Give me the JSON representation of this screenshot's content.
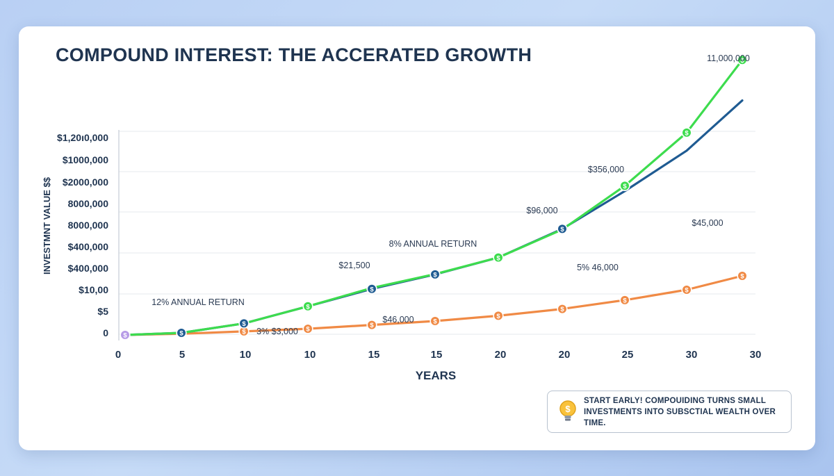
{
  "title": "COMPOUND INTEREST: THE ACCERATED GROWTH",
  "tip": {
    "line1": "START EARLY! COMPOUIDING TURNS SMALL",
    "line2": "INVESTMENTS INTO SUBSCTIAL WEALTH OVER TIME.",
    "icon": "lightbulb-dollar-icon"
  },
  "colors": {
    "green": "#3ddc4e",
    "blue": "#1f5b92",
    "orange": "#f08a45",
    "start": "#b79be6",
    "text": "#1f3450",
    "grid": "#e6e9ee"
  },
  "chart_data": {
    "type": "line",
    "xlabel": "YEARS",
    "ylabel": "INVESTMNT VALUE $$",
    "x_tick_labels": [
      "0",
      "5",
      "10",
      "10",
      "15",
      "15",
      "20",
      "20",
      "25",
      "30",
      "30"
    ],
    "y_tick_labels": [
      "$1,20ı0,000",
      "$1000,000",
      "$2000,000",
      "8000,000",
      "8000,000",
      "$400,000",
      "$400,000",
      "$10,00",
      "$5",
      "0"
    ],
    "grid": true,
    "series": [
      {
        "key": "green",
        "values": [
          0,
          7,
          39,
          97,
          159,
          206,
          262,
          357,
          505,
          685,
          931
        ],
        "markers": [
          false,
          false,
          false,
          true,
          false,
          false,
          true,
          false,
          true,
          true,
          true
        ]
      },
      {
        "key": "blue",
        "values": [
          0,
          7,
          39,
          97,
          156,
          205,
          262,
          359,
          487,
          624,
          794
        ],
        "markers": [
          false,
          true,
          true,
          false,
          true,
          true,
          false,
          true,
          false,
          false,
          false
        ]
      },
      {
        "key": "orange",
        "values": [
          0,
          4,
          12,
          21,
          34,
          47,
          65,
          88,
          118,
          153,
          200
        ],
        "markers": [
          true,
          true,
          true,
          true,
          true,
          true,
          true,
          true,
          true,
          true,
          true
        ]
      }
    ],
    "annotations": [
      {
        "text": "11,000,000"
      },
      {
        "text": "$356,000"
      },
      {
        "text": "$96,000"
      },
      {
        "text": "$45,000"
      },
      {
        "text": "8% ANNUAL RETURN"
      },
      {
        "text": "$21,500"
      },
      {
        "text": "5% 46,000"
      },
      {
        "text": "12% ANNUAL RETURN"
      },
      {
        "text": "$46,000"
      },
      {
        "text": "3% $3,000"
      }
    ]
  }
}
